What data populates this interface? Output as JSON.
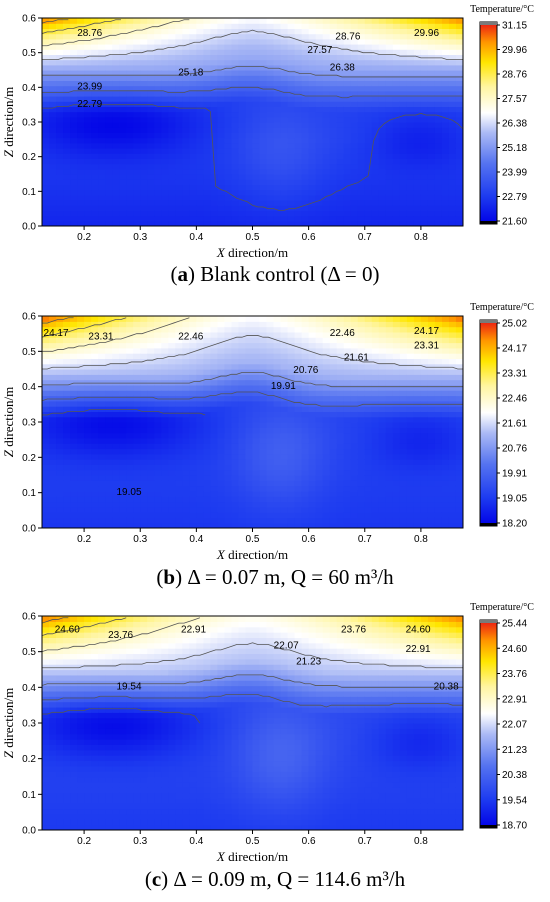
{
  "figures": [
    {
      "caption": {
        "prefix": "(",
        "letter": "a",
        "text": ") Blank control (Δ = 0)"
      },
      "chart_data": {
        "type": "heatmap",
        "xlabel": "X direction/m",
        "ylabel": "Z direction/m",
        "xlim": [
          0.125,
          0.875
        ],
        "ylim": [
          0.0,
          0.6
        ],
        "xticks": [
          "0.2",
          "0.3",
          "0.4",
          "0.5",
          "0.6",
          "0.7",
          "0.8"
        ],
        "yticks": [
          "0.0",
          "0.1",
          "0.2",
          "0.3",
          "0.4",
          "0.5",
          "0.6"
        ],
        "colorbar": {
          "title": "Temperature/°C",
          "min": 21.6,
          "max": 31.15,
          "ticks": [
            "31.15",
            "29.96",
            "28.76",
            "27.57",
            "26.38",
            "25.18",
            "23.99",
            "22.79",
            "21.60"
          ]
        },
        "contour_labels": [
          {
            "text": "28.76",
            "x": 0.21,
            "z": 0.56
          },
          {
            "text": "28.76",
            "x": 0.67,
            "z": 0.55
          },
          {
            "text": "29.96",
            "x": 0.81,
            "z": 0.56
          },
          {
            "text": "27.57",
            "x": 0.62,
            "z": 0.51
          },
          {
            "text": "26.38",
            "x": 0.66,
            "z": 0.46
          },
          {
            "text": "25.18",
            "x": 0.39,
            "z": 0.445
          },
          {
            "text": "23.99",
            "x": 0.21,
            "z": 0.405
          },
          {
            "text": "22.79",
            "x": 0.21,
            "z": 0.355
          }
        ],
        "field": {
          "t_top": 30.6,
          "t_top_center": 26.9,
          "t_iso": 25.5,
          "t_mid": 23.1,
          "t_bottom": 22.0,
          "hot_layer_depth": 0.15,
          "dome_height": 0.05,
          "cold_core": 21.6
        }
      }
    },
    {
      "caption": {
        "prefix": "(",
        "letter": "b",
        "text": ") Δ = 0.07 m, Q = 60 m³/h"
      },
      "chart_data": {
        "type": "heatmap",
        "xlabel": "X direction/m",
        "ylabel": "Z direction/m",
        "xlim": [
          0.125,
          0.875
        ],
        "ylim": [
          0.0,
          0.6
        ],
        "xticks": [
          "0.2",
          "0.3",
          "0.4",
          "0.5",
          "0.6",
          "0.7",
          "0.8"
        ],
        "yticks": [
          "0.0",
          "0.1",
          "0.2",
          "0.3",
          "0.4",
          "0.5",
          "0.6"
        ],
        "colorbar": {
          "title": "Temperature/°C",
          "min": 18.2,
          "max": 25.02,
          "ticks": [
            "25.02",
            "24.17",
            "23.31",
            "22.46",
            "21.61",
            "20.76",
            "19.91",
            "19.05",
            "18.20"
          ]
        },
        "contour_labels": [
          {
            "text": "24.17",
            "x": 0.15,
            "z": 0.555
          },
          {
            "text": "23.31",
            "x": 0.23,
            "z": 0.545
          },
          {
            "text": "22.46",
            "x": 0.39,
            "z": 0.545
          },
          {
            "text": "22.46",
            "x": 0.66,
            "z": 0.555
          },
          {
            "text": "24.17",
            "x": 0.81,
            "z": 0.56
          },
          {
            "text": "23.31",
            "x": 0.81,
            "z": 0.52
          },
          {
            "text": "21.61",
            "x": 0.685,
            "z": 0.485
          },
          {
            "text": "20.76",
            "x": 0.595,
            "z": 0.45
          },
          {
            "text": "19.91",
            "x": 0.555,
            "z": 0.405
          },
          {
            "text": "19.05",
            "x": 0.28,
            "z": 0.105
          }
        ],
        "field": {
          "t_top": 24.8,
          "t_top_center": 22.0,
          "t_iso": 21.2,
          "t_mid": 19.3,
          "t_bottom": 18.9,
          "hot_layer_depth": 0.17,
          "dome_height": 0.07,
          "cold_core": 18.3
        }
      }
    },
    {
      "caption": {
        "prefix": "(",
        "letter": "c",
        "text": ") Δ = 0.09 m, Q = 114.6 m³/h"
      },
      "chart_data": {
        "type": "heatmap",
        "xlabel": "X direction/m",
        "ylabel": "Z direction/m",
        "xlim": [
          0.125,
          0.875
        ],
        "ylim": [
          0.0,
          0.6
        ],
        "xticks": [
          "0.2",
          "0.3",
          "0.4",
          "0.5",
          "0.6",
          "0.7",
          "0.8"
        ],
        "yticks": [
          "0.0",
          "0.1",
          "0.2",
          "0.3",
          "0.4",
          "0.5",
          "0.6"
        ],
        "colorbar": {
          "title": "Temperature/°C",
          "min": 18.7,
          "max": 25.44,
          "ticks": [
            "25.44",
            "24.60",
            "23.76",
            "22.91",
            "22.07",
            "21.23",
            "20.38",
            "19.54",
            "18.70"
          ]
        },
        "contour_labels": [
          {
            "text": "24.60",
            "x": 0.17,
            "z": 0.565
          },
          {
            "text": "23.76",
            "x": 0.265,
            "z": 0.55
          },
          {
            "text": "22.91",
            "x": 0.395,
            "z": 0.565
          },
          {
            "text": "22.07",
            "x": 0.56,
            "z": 0.52
          },
          {
            "text": "23.76",
            "x": 0.68,
            "z": 0.565
          },
          {
            "text": "24.60",
            "x": 0.795,
            "z": 0.565
          },
          {
            "text": "22.91",
            "x": 0.795,
            "z": 0.51
          },
          {
            "text": "21.23",
            "x": 0.6,
            "z": 0.475
          },
          {
            "text": "20.38",
            "x": 0.845,
            "z": 0.405
          },
          {
            "text": "19.54",
            "x": 0.28,
            "z": 0.405
          }
        ],
        "field": {
          "t_top": 25.1,
          "t_top_center": 22.6,
          "t_iso": 21.8,
          "t_mid": 19.9,
          "t_bottom": 19.4,
          "hot_layer_depth": 0.16,
          "dome_height": 0.06,
          "cold_core": 18.8
        }
      }
    }
  ]
}
